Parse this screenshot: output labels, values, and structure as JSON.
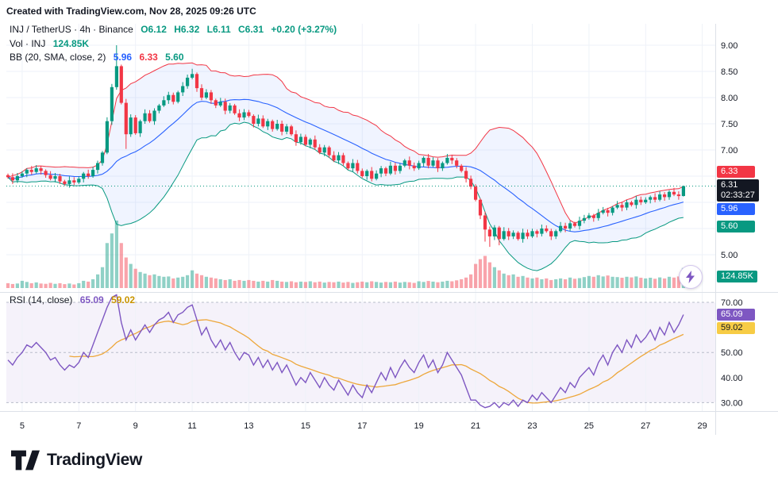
{
  "header": {
    "created_line": "Created with TradingView.com, Nov 28, 2025 09:26 UTC"
  },
  "legend": {
    "symbol": "INJ / TetherUS · 4h · Binance",
    "open": "O6.12",
    "high": "H6.32",
    "low": "L6.11",
    "close": "C6.31",
    "change": "+0.20 (+3.27%)",
    "volume_label": "Vol · INJ",
    "volume_value": "124.85K",
    "bb_label": "BB (20, SMA, close, 2)",
    "bb_basis": "5.96",
    "bb_upper": "6.33",
    "bb_lower": "5.60",
    "rsi_label": "RSI (14, close)",
    "rsi_value": "65.09",
    "rsi_ma": "59.02"
  },
  "badges": {
    "bb_upper": "6.33",
    "last_price": "6.31",
    "countdown": "02:33:27",
    "bb_basis": "5.96",
    "bb_lower": "5.60",
    "volume": "124.85K",
    "rsi": "65.09",
    "rsi_ma": "59.02"
  },
  "logo": {
    "text": "TradingView"
  },
  "colors": {
    "up": "#089981",
    "down": "#f23645",
    "bb_upper": "#f23645",
    "bb_basis": "#2962ff",
    "bb_lower": "#089981",
    "bb_fill": "rgba(41,98,255,0.07)",
    "rsi": "#7e57c2",
    "rsi_ma": "#eda73b",
    "grid": "#eef2f8",
    "axis_text": "#131722",
    "separator": "#dde1e8",
    "rsi_zone": "rgba(126,87,194,0.08)",
    "level_dash": "#b8bcc9",
    "badge_red": "#f23645",
    "badge_blue": "#2962ff",
    "badge_teal": "#089981",
    "badge_dark": "#131722",
    "badge_purple": "#7e57c2",
    "badge_yellow": "#f7cc45"
  },
  "chart_data": {
    "type": "candlestick",
    "title": "INJ / TetherUS 4h Binance",
    "interval": "4h",
    "ohlc_current": {
      "open": 6.12,
      "high": 6.32,
      "low": 6.11,
      "close": 6.31,
      "change": 0.2,
      "change_pct": 3.27
    },
    "indicators": {
      "bollinger": {
        "length": 20,
        "mult": 2,
        "basis": 5.96,
        "upper": 6.33,
        "lower": 5.6
      },
      "rsi": {
        "length": 14,
        "value": 65.09,
        "ma": 59.02
      },
      "volume_current_label": "124.85K"
    },
    "price_axis": {
      "ticks": [
        {
          "label": "9.00",
          "v": 9
        },
        {
          "label": "8.50",
          "v": 8.5
        },
        {
          "label": "8.00",
          "v": 8
        },
        {
          "label": "7.50",
          "v": 7.5
        },
        {
          "label": "7.00",
          "v": 7
        },
        {
          "label": "5.00",
          "v": 5
        }
      ]
    },
    "rsi_axis": {
      "ticks": [
        {
          "label": "70.00",
          "v": 70
        },
        {
          "label": "50.00",
          "v": 50
        },
        {
          "label": "40.00",
          "v": 40
        },
        {
          "label": "30.00",
          "v": 30
        }
      ]
    },
    "x_axis": {
      "labels": [
        {
          "label": "5",
          "i": 3
        },
        {
          "label": "7",
          "i": 15
        },
        {
          "label": "9",
          "i": 27
        },
        {
          "label": "11",
          "i": 39
        },
        {
          "label": "13",
          "i": 51
        },
        {
          "label": "15",
          "i": 63
        },
        {
          "label": "17",
          "i": 75
        },
        {
          "label": "19",
          "i": 87
        },
        {
          "label": "21",
          "i": 99
        },
        {
          "label": "23",
          "i": 111
        },
        {
          "label": "25",
          "i": 123
        },
        {
          "label": "27",
          "i": 135
        },
        {
          "label": "29",
          "i": 147
        }
      ]
    },
    "volume_max": 420,
    "closes": [
      6.48,
      6.42,
      6.5,
      6.55,
      6.62,
      6.58,
      6.65,
      6.6,
      6.52,
      6.45,
      6.5,
      6.4,
      6.35,
      6.42,
      6.38,
      6.45,
      6.55,
      6.5,
      6.62,
      6.75,
      6.95,
      7.55,
      8.2,
      8.6,
      7.9,
      7.3,
      7.62,
      7.32,
      7.55,
      7.7,
      7.55,
      7.75,
      7.85,
      7.95,
      8.05,
      7.92,
      8.1,
      8.22,
      8.38,
      8.45,
      8.18,
      8.0,
      8.1,
      7.95,
      7.85,
      7.92,
      7.75,
      7.85,
      7.7,
      7.62,
      7.72,
      7.65,
      7.5,
      7.6,
      7.45,
      7.55,
      7.4,
      7.5,
      7.35,
      7.45,
      7.3,
      7.15,
      7.25,
      7.1,
      7.2,
      7.05,
      6.95,
      7.05,
      6.9,
      6.8,
      6.9,
      6.75,
      6.65,
      6.75,
      6.6,
      6.5,
      6.6,
      6.45,
      6.55,
      6.65,
      6.55,
      6.7,
      6.6,
      6.7,
      6.8,
      6.7,
      6.65,
      6.75,
      6.85,
      6.7,
      6.8,
      6.65,
      6.75,
      6.85,
      6.8,
      6.7,
      6.6,
      6.45,
      6.3,
      6.05,
      5.75,
      5.48,
      5.35,
      5.52,
      5.3,
      5.45,
      5.35,
      5.42,
      5.3,
      5.42,
      5.35,
      5.45,
      5.4,
      5.5,
      5.45,
      5.35,
      5.45,
      5.55,
      5.5,
      5.6,
      5.55,
      5.65,
      5.7,
      5.75,
      5.7,
      5.8,
      5.85,
      5.8,
      5.9,
      5.95,
      5.9,
      6.0,
      5.95,
      6.05,
      6.0,
      6.05,
      6.1,
      6.05,
      6.15,
      6.1,
      6.2,
      6.15,
      6.12,
      6.31
    ],
    "volumes": [
      30,
      25,
      28,
      45,
      38,
      30,
      35,
      28,
      26,
      32,
      26,
      30,
      24,
      28,
      22,
      30,
      45,
      40,
      55,
      85,
      130,
      280,
      340,
      420,
      280,
      190,
      150,
      120,
      100,
      90,
      80,
      85,
      75,
      70,
      72,
      60,
      65,
      70,
      80,
      110,
      90,
      80,
      70,
      65,
      60,
      55,
      50,
      55,
      45,
      50,
      45,
      50,
      45,
      40,
      45,
      40,
      50,
      45,
      40,
      38,
      42,
      36,
      40,
      38,
      42,
      36,
      40,
      34,
      38,
      36,
      40,
      34,
      38,
      32,
      36,
      40,
      36,
      42,
      38,
      34,
      38,
      36,
      40,
      34,
      38,
      36,
      32,
      42,
      38,
      44,
      40,
      36,
      40,
      45,
      42,
      48,
      55,
      65,
      85,
      150,
      180,
      200,
      160,
      130,
      110,
      90,
      80,
      85,
      70,
      75,
      65,
      60,
      65,
      55,
      60,
      50,
      55,
      60,
      55,
      65,
      58,
      62,
      68,
      75,
      70,
      80,
      72,
      78,
      70,
      68,
      64,
      70,
      66,
      72,
      64,
      60,
      64,
      58,
      66,
      60,
      70,
      65,
      72,
      124.85
    ],
    "rsi": [
      47,
      45,
      48,
      50,
      53,
      52,
      54,
      52,
      50,
      47,
      48,
      45,
      43,
      45,
      44,
      46,
      50,
      48,
      53,
      58,
      63,
      68,
      72,
      73,
      62,
      55,
      59,
      55,
      58,
      61,
      58,
      61,
      63,
      64,
      66,
      62,
      65,
      66,
      68,
      69,
      63,
      57,
      60,
      55,
      52,
      55,
      51,
      54,
      50,
      47,
      50,
      49,
      45,
      48,
      44,
      47,
      43,
      46,
      42,
      45,
      41,
      37,
      40,
      38,
      42,
      39,
      36,
      40,
      37,
      35,
      39,
      36,
      33,
      37,
      34,
      32,
      37,
      34,
      38,
      42,
      39,
      44,
      40,
      44,
      47,
      44,
      42,
      46,
      49,
      44,
      47,
      42,
      45,
      50,
      47,
      44,
      41,
      36,
      31,
      31,
      29,
      28,
      28.5,
      30,
      28,
      30,
      29,
      31,
      28.5,
      31,
      30,
      33,
      31,
      34,
      32,
      30,
      33,
      36,
      34,
      38,
      36,
      40,
      42,
      44,
      41,
      46,
      49,
      45,
      50,
      53,
      50,
      55,
      52,
      57,
      54,
      56,
      59,
      55,
      60,
      57,
      62,
      58,
      61,
      65.09
    ],
    "wick_overrides": {
      "23": {
        "h": 9.0
      },
      "25": {
        "l": 7.02
      },
      "39": {
        "h": 8.55
      },
      "101": {
        "l": 5.25
      },
      "102": {
        "l": 5.15
      },
      "104": {
        "l": 5.18
      },
      "143": {
        "o": 6.12,
        "h": 6.32,
        "l": 6.11,
        "c": 6.31
      }
    }
  }
}
